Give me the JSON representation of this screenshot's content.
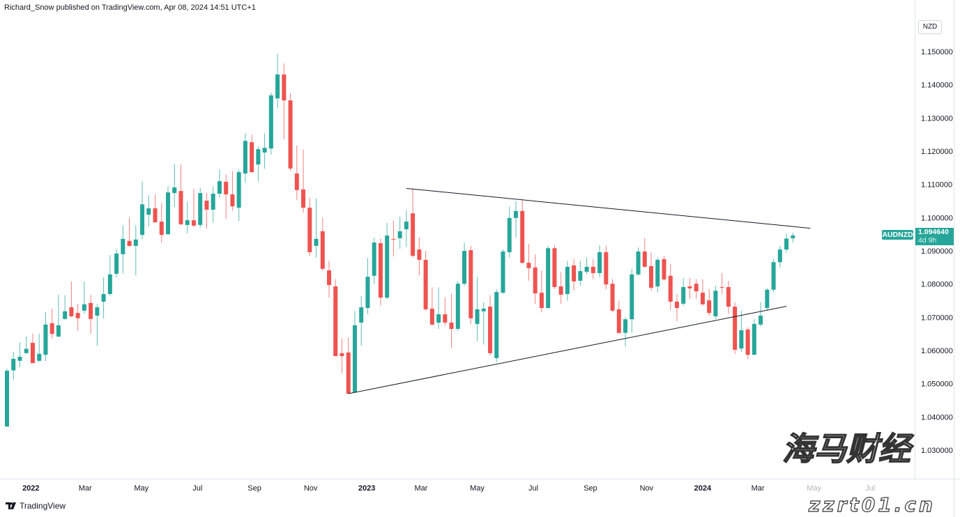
{
  "header": {
    "published": "Richard_Snow published on TradingView.com, Apr 08, 2024 14:51 UTC+1"
  },
  "currency_button": "NZD",
  "symbol_tag": "AUDNZD",
  "last_price": "1.094640",
  "countdown": "4d 9h",
  "logo_text": "TradingView",
  "watermark": {
    "cn": "海马财经",
    "url": "zzrt01.cn"
  },
  "colors": {
    "up": "#26a69a",
    "down": "#ef5350",
    "trendline": "#131722"
  },
  "chart_data": {
    "type": "candlestick",
    "symbol": "AUDNZD",
    "interval": "weekly",
    "ylim": [
      1.025,
      1.158
    ],
    "y_ticks": [
      "1.030000",
      "1.040000",
      "1.050000",
      "1.060000",
      "1.070000",
      "1.080000",
      "1.090000",
      "1.100000",
      "1.110000",
      "1.120000",
      "1.130000",
      "1.140000",
      "1.150000"
    ],
    "x_ticks": [
      {
        "label": "2022",
        "date": "2022-01-01"
      },
      {
        "label": "Mar",
        "date": "2022-03-01"
      },
      {
        "label": "May",
        "date": "2022-05-01"
      },
      {
        "label": "Jul",
        "date": "2022-07-01"
      },
      {
        "label": "Sep",
        "date": "2022-09-01"
      },
      {
        "label": "Nov",
        "date": "2022-11-01"
      },
      {
        "label": "2023",
        "date": "2023-01-01"
      },
      {
        "label": "Mar",
        "date": "2023-03-01"
      },
      {
        "label": "May",
        "date": "2023-05-01"
      },
      {
        "label": "Jul",
        "date": "2023-07-01"
      },
      {
        "label": "Sep",
        "date": "2023-09-01"
      },
      {
        "label": "Nov",
        "date": "2023-11-01"
      },
      {
        "label": "2024",
        "date": "2024-01-01"
      },
      {
        "label": "Mar",
        "date": "2024-03-01"
      },
      {
        "label": "May",
        "date": "2024-05-01"
      },
      {
        "label": "Jul",
        "date": "2024-07-01"
      }
    ],
    "grid": false,
    "ohlc_fields": [
      "open",
      "high",
      "low",
      "close"
    ],
    "candles": [
      [
        1.0371,
        1.0545,
        1.0371,
        1.0539
      ],
      [
        1.054,
        1.0596,
        1.0512,
        1.0575
      ],
      [
        1.0569,
        1.0625,
        1.0549,
        1.0581
      ],
      [
        1.0592,
        1.0643,
        1.059,
        1.0605
      ],
      [
        1.0623,
        1.0651,
        1.0562,
        1.0562
      ],
      [
        1.0569,
        1.065,
        1.0566,
        1.059
      ],
      [
        1.0587,
        1.0715,
        1.0568,
        1.0678
      ],
      [
        1.0682,
        1.0726,
        1.0636,
        1.065
      ],
      [
        1.0642,
        1.0768,
        1.064,
        1.0676
      ],
      [
        1.0695,
        1.0767,
        1.0693,
        1.0718
      ],
      [
        1.073,
        1.0808,
        1.07,
        1.0703
      ],
      [
        1.0713,
        1.074,
        1.0659,
        1.0697
      ],
      [
        1.072,
        1.0808,
        1.0711,
        1.0739
      ],
      [
        1.0743,
        1.0767,
        1.065,
        1.0695
      ],
      [
        1.0705,
        1.074,
        1.0614,
        1.073
      ],
      [
        1.0747,
        1.082,
        1.0696,
        1.077
      ],
      [
        1.077,
        1.0887,
        1.0765,
        1.0829
      ],
      [
        1.0831,
        1.0906,
        1.082,
        1.0892
      ],
      [
        1.089,
        1.0977,
        1.0832,
        1.0936
      ],
      [
        1.093,
        1.1,
        1.0912,
        1.0915
      ],
      [
        1.0915,
        1.0977,
        1.0826,
        1.0934
      ],
      [
        1.0948,
        1.1109,
        1.0935,
        1.104
      ],
      [
        1.1009,
        1.1067,
        1.0974,
        1.1028
      ],
      [
        1.1028,
        1.107,
        1.0984,
        1.0986
      ],
      [
        1.0988,
        1.1044,
        1.0925,
        1.0948
      ],
      [
        1.095,
        1.1094,
        1.0948,
        1.1076
      ],
      [
        1.1074,
        1.1162,
        1.1032,
        1.1091
      ],
      [
        1.108,
        1.116,
        1.0978,
        1.098
      ],
      [
        1.0978,
        1.1048,
        1.0953,
        1.0992
      ],
      [
        1.0992,
        1.1086,
        1.097,
        1.0976
      ],
      [
        1.0978,
        1.109,
        1.097,
        1.1074
      ],
      [
        1.1051,
        1.1075,
        1.0967,
        1.1024
      ],
      [
        1.1024,
        1.1093,
        1.0985,
        1.1072
      ],
      [
        1.1072,
        1.1145,
        1.106,
        1.111
      ],
      [
        1.1108,
        1.113,
        1.0996,
        1.107
      ],
      [
        1.107,
        1.114,
        1.102,
        1.1034
      ],
      [
        1.103,
        1.1145,
        1.099,
        1.1137
      ],
      [
        1.1133,
        1.1254,
        1.1105,
        1.1231
      ],
      [
        1.1227,
        1.125,
        1.1135,
        1.1137
      ],
      [
        1.116,
        1.1215,
        1.1109,
        1.1206
      ],
      [
        1.1196,
        1.1254,
        1.1147,
        1.121
      ],
      [
        1.1208,
        1.1376,
        1.119,
        1.1368
      ],
      [
        1.1359,
        1.1492,
        1.1329,
        1.1431
      ],
      [
        1.1431,
        1.1464,
        1.1236,
        1.1353
      ],
      [
        1.1353,
        1.1375,
        1.114,
        1.1148
      ],
      [
        1.1133,
        1.1217,
        1.1054,
        1.1083
      ],
      [
        1.1085,
        1.1205,
        1.1015,
        1.103
      ],
      [
        1.103,
        1.106,
        1.0885,
        1.0896
      ],
      [
        1.0915,
        1.1058,
        1.088,
        1.0936
      ],
      [
        1.0959,
        1.1,
        1.084,
        1.0846
      ],
      [
        1.0841,
        1.087,
        1.0759,
        1.0797
      ],
      [
        1.0793,
        1.0815,
        1.0583,
        1.0583
      ],
      [
        1.0592,
        1.0637,
        1.0532,
        1.0583
      ],
      [
        1.0594,
        1.0639,
        1.047,
        1.047
      ],
      [
        1.0474,
        1.0719,
        1.0474,
        1.0676
      ],
      [
        1.0684,
        1.0764,
        1.0614,
        1.073
      ],
      [
        1.0728,
        1.0879,
        1.071,
        1.0822
      ],
      [
        1.0825,
        1.094,
        1.08,
        1.0925
      ],
      [
        1.0923,
        1.0937,
        1.0735,
        1.0759
      ],
      [
        1.0759,
        1.0984,
        1.0755,
        1.0946
      ],
      [
        1.0936,
        1.0991,
        1.0883,
        1.0935
      ],
      [
        1.0938,
        1.1003,
        1.0906,
        1.0959
      ],
      [
        1.0965,
        1.1022,
        1.0912,
        1.0988
      ],
      [
        1.1013,
        1.1088,
        1.088,
        1.0885
      ],
      [
        1.0904,
        1.094,
        1.0826,
        1.0873
      ],
      [
        1.0873,
        1.09,
        1.072,
        1.0724
      ],
      [
        1.0726,
        1.079,
        1.0675,
        1.0678
      ],
      [
        1.0684,
        1.079,
        1.0665,
        1.0709
      ],
      [
        1.0709,
        1.076,
        1.0675,
        1.0684
      ],
      [
        1.0684,
        1.077,
        1.0607,
        1.0665
      ],
      [
        1.0665,
        1.0808,
        1.066,
        1.0801
      ],
      [
        1.0801,
        1.0925,
        1.0795,
        1.09
      ],
      [
        1.0902,
        1.0915,
        1.068,
        1.0697
      ],
      [
        1.068,
        1.0822,
        1.0628,
        1.0724
      ],
      [
        1.0718,
        1.0745,
        1.0618,
        1.0726
      ],
      [
        1.0732,
        1.0766,
        1.0585,
        1.0592
      ],
      [
        1.0577,
        1.0785,
        1.0565,
        1.0776
      ],
      [
        1.0774,
        1.0905,
        1.077,
        1.0898
      ],
      [
        1.0896,
        1.1033,
        1.088,
        1.0999
      ],
      [
        1.0999,
        1.105,
        1.094,
        1.102
      ],
      [
        1.102,
        1.1054,
        1.086,
        1.0864
      ],
      [
        1.0864,
        1.092,
        1.081,
        1.0848
      ],
      [
        1.085,
        1.089,
        1.074,
        1.0772
      ],
      [
        1.0774,
        1.084,
        1.0715,
        1.0728
      ],
      [
        1.0728,
        1.0915,
        1.0725,
        1.0908
      ],
      [
        1.0908,
        1.0917,
        1.0785,
        1.0791
      ],
      [
        1.0793,
        1.0835,
        1.074,
        1.0768
      ],
      [
        1.077,
        1.087,
        1.075,
        1.0852
      ],
      [
        1.0856,
        1.0875,
        1.078,
        1.0808
      ],
      [
        1.081,
        1.087,
        1.0795,
        1.0839
      ],
      [
        1.0837,
        1.088,
        1.083,
        1.0852
      ],
      [
        1.0852,
        1.0875,
        1.0815,
        1.0833
      ],
      [
        1.0833,
        1.0917,
        1.082,
        1.0896
      ],
      [
        1.0896,
        1.0915,
        1.0785,
        1.0799
      ],
      [
        1.0801,
        1.0815,
        1.0715,
        1.072
      ],
      [
        1.0724,
        1.075,
        1.065,
        1.0653
      ],
      [
        1.0653,
        1.07,
        1.0612,
        1.0694
      ],
      [
        1.0694,
        1.0845,
        1.0653,
        1.0829
      ],
      [
        1.0829,
        1.091,
        1.0825,
        1.0898
      ],
      [
        1.0898,
        1.0938,
        1.085,
        1.0852
      ],
      [
        1.0854,
        1.0895,
        1.078,
        1.0789
      ],
      [
        1.0793,
        1.088,
        1.0775,
        1.0873
      ],
      [
        1.0875,
        1.0885,
        1.081,
        1.0814
      ],
      [
        1.0825,
        1.086,
        1.0722,
        1.0747
      ],
      [
        1.0747,
        1.077,
        1.0688,
        1.0728
      ],
      [
        1.0741,
        1.0818,
        1.0735,
        1.0791
      ],
      [
        1.0793,
        1.0818,
        1.0755,
        1.0787
      ],
      [
        1.0801,
        1.0815,
        1.0755,
        1.0778
      ],
      [
        1.0774,
        1.0814,
        1.0735,
        1.0739
      ],
      [
        1.0751,
        1.0785,
        1.0705,
        1.0713
      ],
      [
        1.0703,
        1.0795,
        1.0695,
        1.078
      ],
      [
        1.0791,
        1.0833,
        1.077,
        1.0789
      ],
      [
        1.0791,
        1.081,
        1.071,
        1.0732
      ],
      [
        1.0732,
        1.0745,
        1.059,
        1.0602
      ],
      [
        1.0606,
        1.072,
        1.0596,
        1.0661
      ],
      [
        1.0663,
        1.067,
        1.0575,
        1.0587
      ],
      [
        1.0587,
        1.0695,
        1.0587,
        1.068
      ],
      [
        1.0678,
        1.0745,
        1.0672,
        1.0705
      ],
      [
        1.0728,
        1.0788,
        1.072,
        1.0783
      ],
      [
        1.0783,
        1.0876,
        1.0775,
        1.0866
      ],
      [
        1.0866,
        1.0915,
        1.085,
        1.0904
      ],
      [
        1.0904,
        1.0952,
        1.0895,
        1.0937
      ],
      [
        1.0938,
        1.0955,
        1.0925,
        1.09464
      ]
    ],
    "last_candle_date": "2024-04-08",
    "trendlines": [
      {
        "from": {
          "date": "2023-02-13",
          "price": 1.1088
        },
        "to": {
          "date": "2024-04-27",
          "price": 1.0968
        }
      },
      {
        "from": {
          "date": "2022-12-12",
          "price": 1.047
        },
        "to": {
          "date": "2024-04-01",
          "price": 1.0733
        }
      }
    ]
  }
}
